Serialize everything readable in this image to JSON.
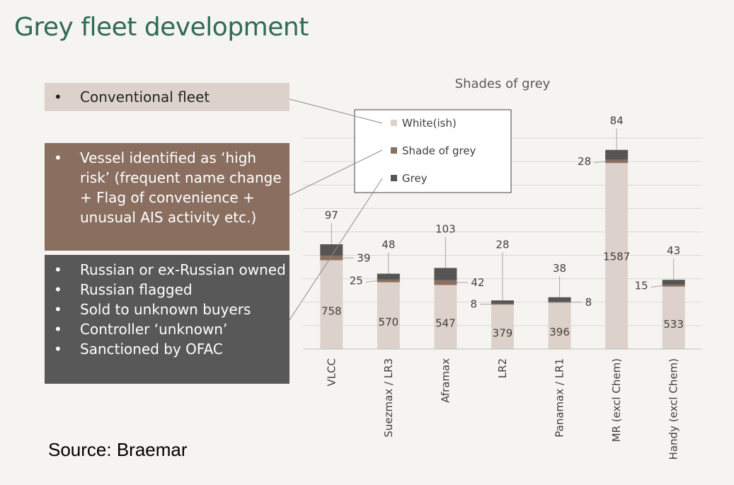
{
  "page": {
    "title": "Grey fleet development",
    "source": "Source: Braemar"
  },
  "boxes": [
    {
      "items": [
        "Conventional fleet"
      ],
      "color": "#ddd2cb"
    },
    {
      "items": [
        "Vessel identified as ‘high risk’ (frequent name change + Flag of convenience + unusual AIS activity etc.)"
      ],
      "color": "#8a6f60"
    },
    {
      "items": [
        "Russian or ex-Russian owned",
        "Russian flagged",
        "Sold to unknown buyers",
        "Controller ‘unknown’",
        "Sanctioned by OFAC"
      ],
      "color": "#585858"
    }
  ],
  "chart_data": {
    "type": "bar",
    "stacked": true,
    "title": "Shades of grey",
    "categories": [
      "VLCC",
      "Suezmax / LR3",
      "Aframax",
      "LR2",
      "Panamax / LR1",
      "MR (excl Chem)",
      "Handy (excl Chem)"
    ],
    "series": [
      {
        "name": "White(ish)",
        "color": "#ddd2cb",
        "values": [
          758,
          570,
          547,
          379,
          396,
          1587,
          533
        ]
      },
      {
        "name": "Shade of grey",
        "color": "#8a6f60",
        "values": [
          39,
          25,
          42,
          8,
          8,
          28,
          15
        ]
      },
      {
        "name": "Grey",
        "color": "#555555",
        "values": [
          97,
          48,
          103,
          28,
          38,
          84,
          43
        ]
      }
    ],
    "ylim": [
      0,
      1800
    ],
    "grid": true,
    "legend": "top-left",
    "xlabel": "",
    "ylabel": ""
  }
}
